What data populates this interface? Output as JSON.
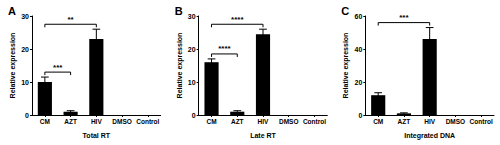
{
  "chart_data": [
    {
      "type": "bar",
      "title": "A",
      "x_label": "Total RT",
      "y_label": "Relative expression",
      "categories": [
        "CM",
        "AZT",
        "HIV",
        "DMSO",
        "Control"
      ],
      "values": [
        10,
        1,
        23,
        0,
        0
      ],
      "errors": [
        1.5,
        0.3,
        3,
        0,
        0
      ],
      "color": "#000000",
      "ylim": [
        0,
        30
      ],
      "yticks": [
        0,
        10,
        20,
        30
      ],
      "grid": false,
      "annotations": [
        {
          "from": "CM",
          "to": "AZT",
          "text": "***"
        },
        {
          "from": "CM",
          "to": "HIV",
          "text": "**"
        }
      ]
    },
    {
      "type": "bar",
      "title": "B",
      "x_label": "Late RT",
      "y_label": "Relative expression",
      "categories": [
        "CM",
        "AZT",
        "HIV",
        "DMSO",
        "Control"
      ],
      "values": [
        16,
        1,
        24.5,
        0,
        0
      ],
      "errors": [
        1,
        0.3,
        1.5,
        0,
        0
      ],
      "color": "#000000",
      "ylim": [
        0,
        30
      ],
      "yticks": [
        0,
        10,
        20,
        30
      ],
      "grid": false,
      "annotations": [
        {
          "from": "CM",
          "to": "AZT",
          "text": "****"
        },
        {
          "from": "CM",
          "to": "HIV",
          "text": "****"
        }
      ]
    },
    {
      "type": "bar",
      "title": "C",
      "x_label": "Integrated DNA",
      "y_label": "Relative expression",
      "categories": [
        "CM",
        "AZT",
        "HIV",
        "DMSO",
        "Control"
      ],
      "values": [
        12,
        1,
        46,
        0,
        0
      ],
      "errors": [
        1.5,
        0.3,
        7,
        0,
        0
      ],
      "color": "#000000",
      "ylim": [
        0,
        60
      ],
      "yticks": [
        0,
        20,
        40,
        60
      ],
      "grid": false,
      "annotations": [
        {
          "from": "CM",
          "to": "HIV",
          "text": "***"
        }
      ]
    }
  ]
}
